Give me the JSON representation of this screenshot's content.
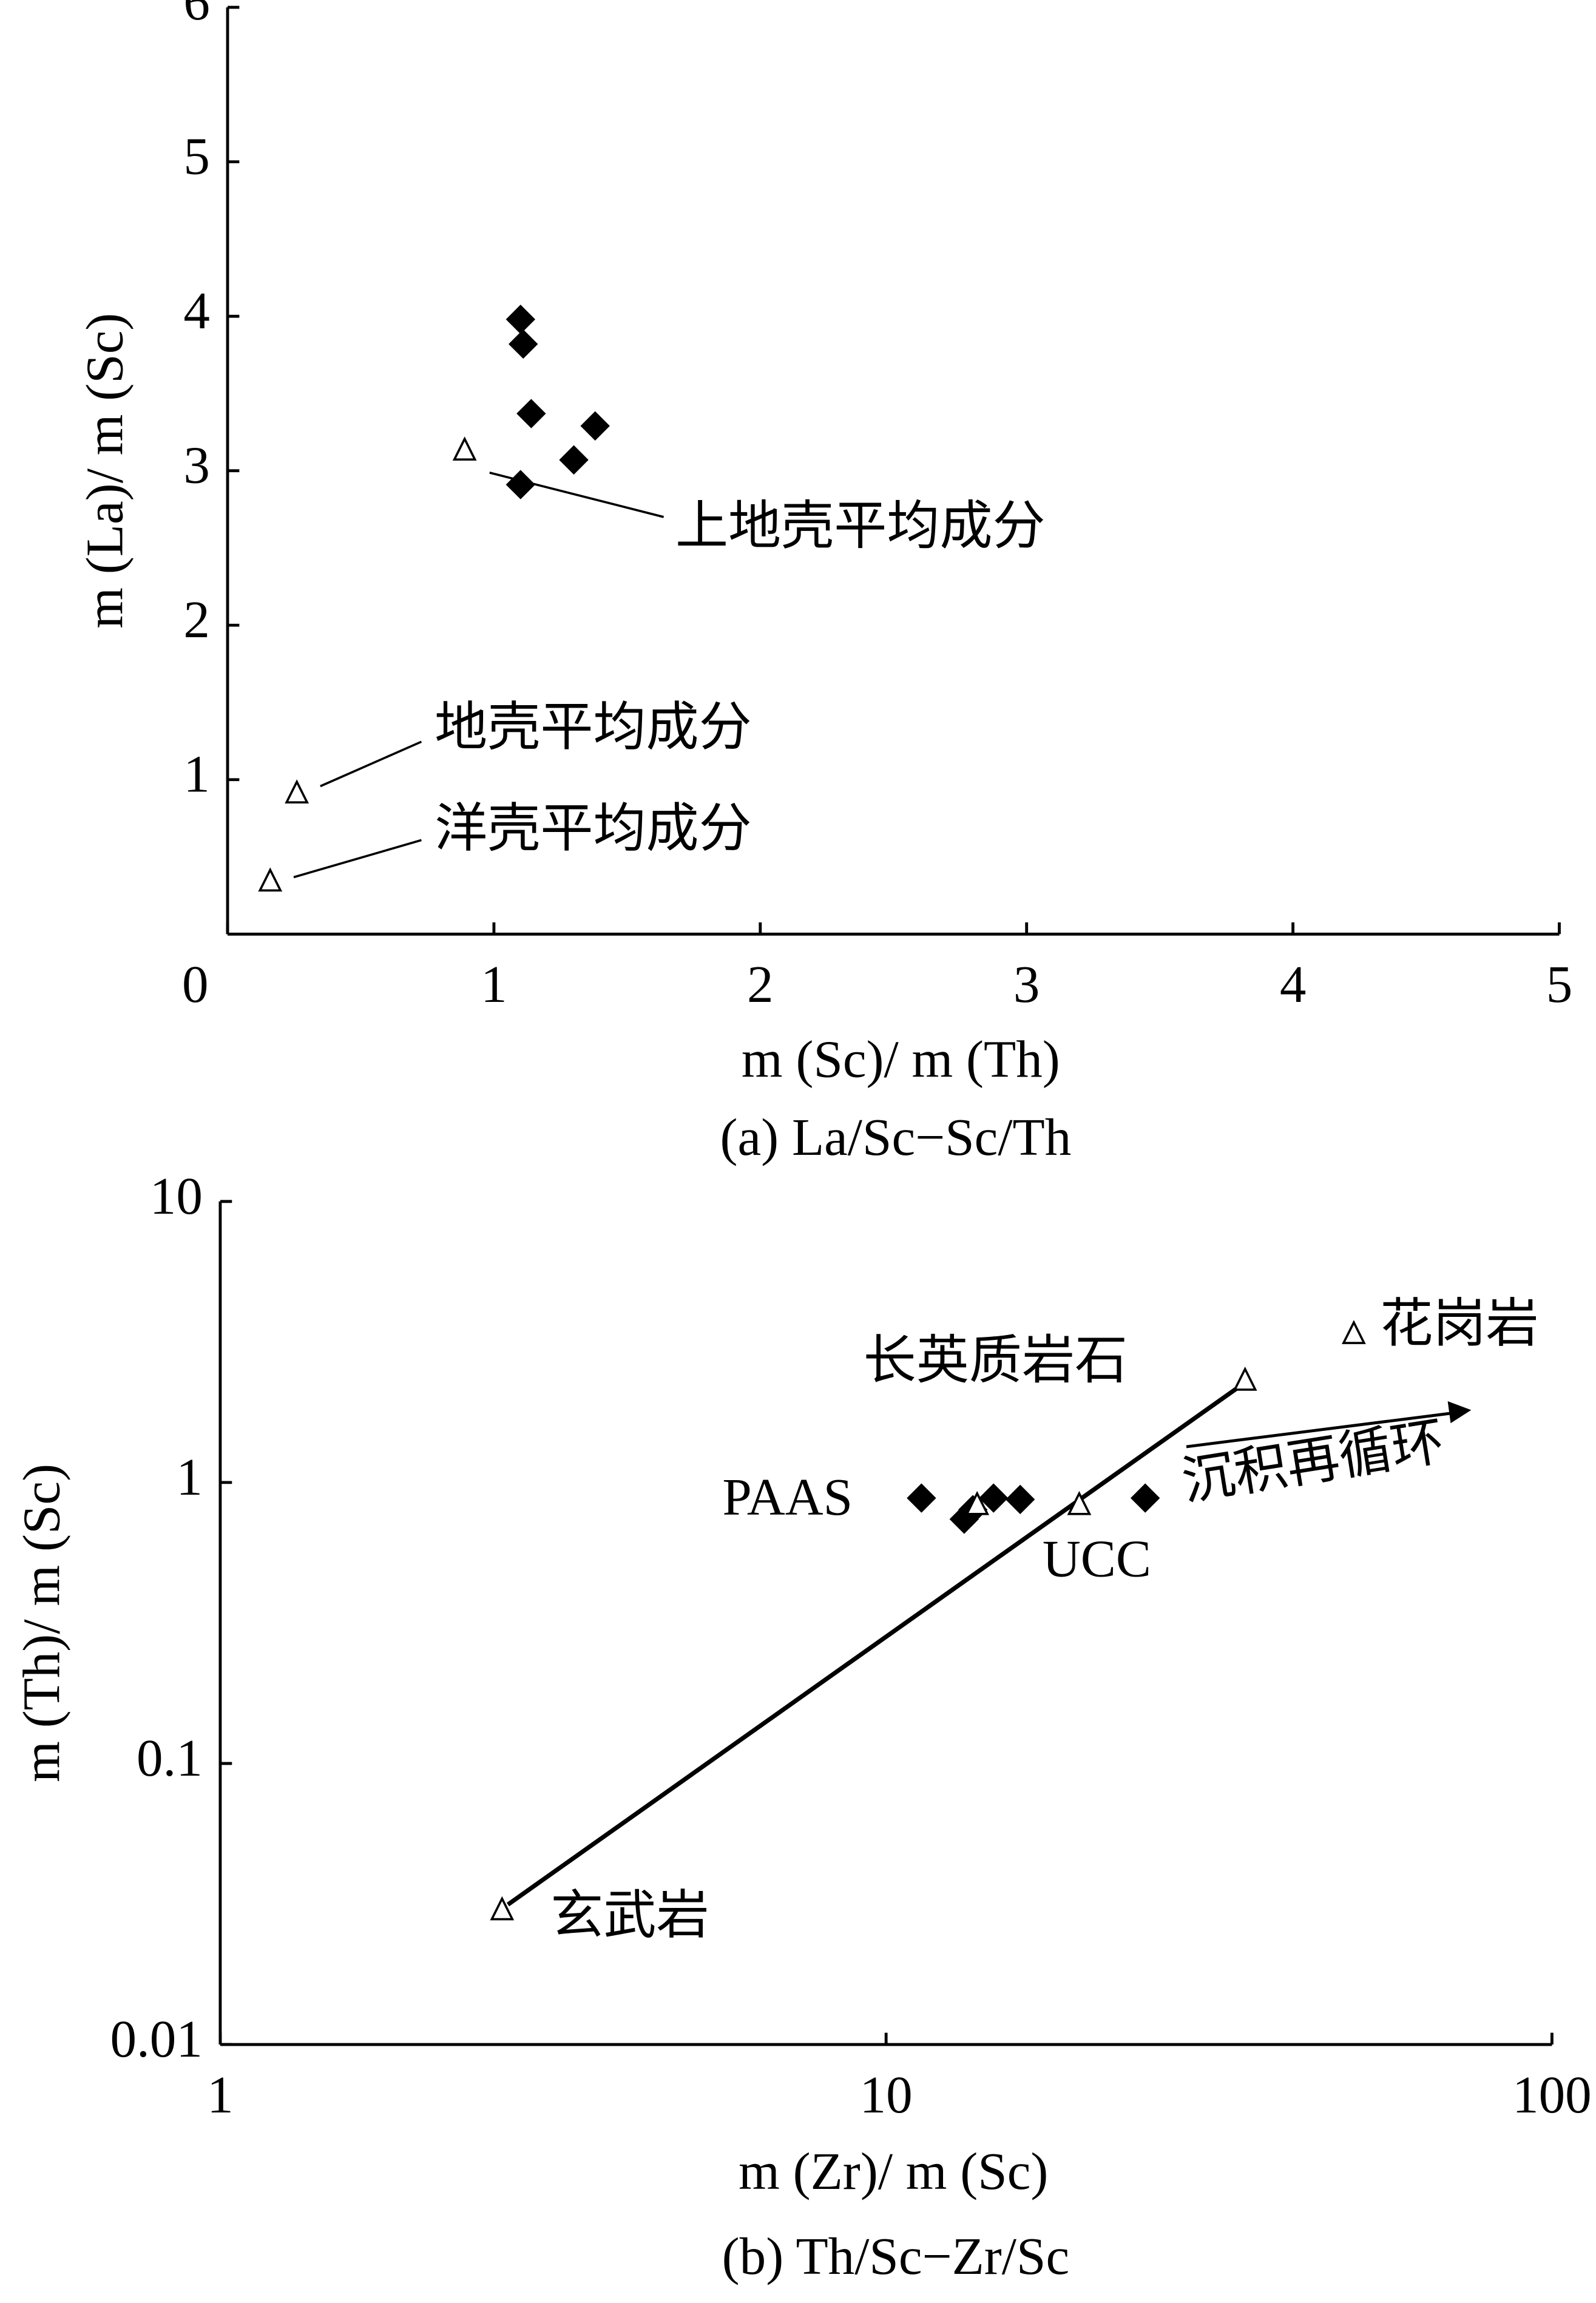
{
  "chart_data": [
    {
      "type": "scatter",
      "caption": "(a) La/Sc−Sc/Th",
      "xlabel": "m (Sc)/ m (Th)",
      "ylabel": "m (La)/ m (Sc)",
      "xlim": [
        0,
        5
      ],
      "ylim": [
        0,
        6
      ],
      "xticks": [
        0,
        1,
        2,
        3,
        4,
        5
      ],
      "yticks": [
        1,
        2,
        3,
        4,
        5,
        6
      ],
      "log": false,
      "series": [
        {
          "marker": "diamond",
          "color": "#000000",
          "x": [
            1.1,
            1.11,
            1.14,
            1.38,
            1.3,
            1.1
          ],
          "values": [
            3.98,
            3.82,
            3.37,
            3.29,
            3.07,
            2.91
          ]
        },
        {
          "marker": "triangle",
          "color": "#000000",
          "x": [
            0.89,
            0.26,
            0.16
          ],
          "values": [
            3.13,
            0.91,
            0.34
          ],
          "labels": [
            "上地壳平均成分",
            "地壳平均成分",
            "洋壳平均成分"
          ]
        }
      ]
    },
    {
      "type": "scatter",
      "caption": "(b) Th/Sc−Zr/Sc",
      "xlabel": "m (Zr)/ m (Sc)",
      "ylabel": "m (Th)/ m (Sc)",
      "xlim": [
        1,
        100
      ],
      "ylim": [
        0.01,
        10
      ],
      "xticks": [
        1,
        10,
        100
      ],
      "yticks": [
        0.01,
        0.1,
        1,
        10
      ],
      "log": true,
      "trend_label": "沉积再循环",
      "series": [
        {
          "marker": "diamond",
          "color": "#000000",
          "x": [
            11.3,
            13.1,
            13.5,
            14.5,
            15.9,
            24.5
          ],
          "values": [
            0.88,
            0.74,
            0.8,
            0.88,
            0.87,
            0.88
          ]
        },
        {
          "marker": "triangle",
          "color": "#000000",
          "x": [
            2.65,
            34.6,
            50.4,
            19.5,
            13.7
          ],
          "values": [
            0.03,
            2.3,
            3.37,
            0.83,
            0.83
          ],
          "labels": [
            "玄武岩",
            "长英质岩石",
            "花岗岩",
            "UCC",
            "PAAS"
          ]
        }
      ]
    }
  ]
}
